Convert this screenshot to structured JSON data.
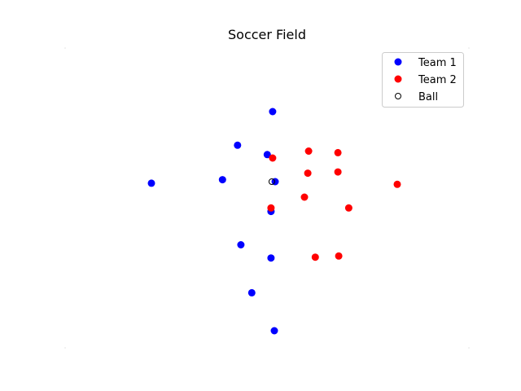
{
  "chart_data": {
    "type": "scatter",
    "title": "Soccer Field",
    "xlabel": "",
    "ylabel": "",
    "xlim": [
      0,
      100
    ],
    "ylim": [
      0,
      70
    ],
    "grid": false,
    "axes_visible": false,
    "legend_position": "top-right",
    "series": [
      {
        "name": "Team 1",
        "color": "#0000ff",
        "marker": "filled-circle",
        "points": [
          {
            "x": 50.2,
            "y": 56.6
          },
          {
            "x": 41.8,
            "y": 47.9
          },
          {
            "x": 48.9,
            "y": 45.5
          },
          {
            "x": 21.2,
            "y": 38.1
          },
          {
            "x": 38.2,
            "y": 39.0
          },
          {
            "x": 50.8,
            "y": 38.5
          },
          {
            "x": 49.8,
            "y": 30.8
          },
          {
            "x": 42.6,
            "y": 22.2
          },
          {
            "x": 49.8,
            "y": 18.8
          },
          {
            "x": 45.2,
            "y": 9.8
          },
          {
            "x": 50.6,
            "y": 0.0
          }
        ]
      },
      {
        "name": "Team 2",
        "color": "#ff0000",
        "marker": "filled-circle",
        "points": [
          {
            "x": 58.8,
            "y": 46.4
          },
          {
            "x": 65.8,
            "y": 46.0
          },
          {
            "x": 50.2,
            "y": 44.6
          },
          {
            "x": 58.6,
            "y": 40.7
          },
          {
            "x": 65.8,
            "y": 41.0
          },
          {
            "x": 80.0,
            "y": 37.8
          },
          {
            "x": 57.8,
            "y": 34.5
          },
          {
            "x": 68.4,
            "y": 31.7
          },
          {
            "x": 49.8,
            "y": 31.7
          },
          {
            "x": 60.4,
            "y": 19.0
          },
          {
            "x": 66.0,
            "y": 19.3
          }
        ]
      },
      {
        "name": "Ball",
        "color": "#000000",
        "marker": "hollow-circle",
        "points": [
          {
            "x": 50.0,
            "y": 38.5
          }
        ]
      }
    ]
  }
}
